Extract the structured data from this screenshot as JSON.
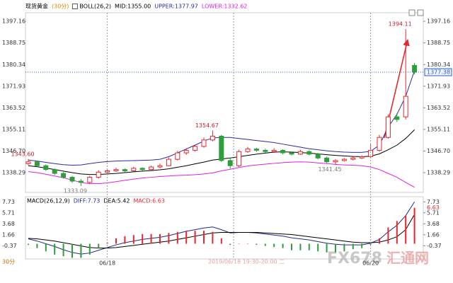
{
  "chart_data": [
    {
      "type": "candlestick",
      "symbol": "现货黄金",
      "interval": "(30分)",
      "indicator": "BOLL(26,2)",
      "up_color": "#e8262b",
      "down_color": "#2e9e3a",
      "ohlc": [
        [
          1341.8,
          1343.6,
          1341.2,
          1342.5
        ],
        [
          1342.5,
          1343.0,
          1340.6,
          1341
        ],
        [
          1341,
          1341.5,
          1339,
          1339.5
        ],
        [
          1339.5,
          1340,
          1337.4,
          1338
        ],
        [
          1338,
          1338.6,
          1336,
          1336.5
        ],
        [
          1336.5,
          1337,
          1334.3,
          1335
        ],
        [
          1335,
          1335.8,
          1333.09,
          1334.5
        ],
        [
          1334.5,
          1337,
          1334,
          1336.5
        ],
        [
          1336.5,
          1339.2,
          1336,
          1338.5
        ],
        [
          1338.5,
          1339.8,
          1338,
          1339
        ],
        [
          1339,
          1340.2,
          1338.6,
          1339.5
        ],
        [
          1339.5,
          1340,
          1338.5,
          1339
        ],
        [
          1339,
          1340.6,
          1338.8,
          1340
        ],
        [
          1340,
          1340.4,
          1339,
          1339.5
        ],
        [
          1339.5,
          1341,
          1339.2,
          1340.5
        ],
        [
          1340.5,
          1341.8,
          1340,
          1341
        ],
        [
          1341,
          1344.2,
          1340.8,
          1343.5
        ],
        [
          1343.5,
          1346.8,
          1343,
          1346
        ],
        [
          1346,
          1347.8,
          1345.2,
          1347
        ],
        [
          1347,
          1349.2,
          1346.5,
          1348.5
        ],
        [
          1348.5,
          1352,
          1348,
          1351
        ],
        [
          1351,
          1354.67,
          1350.5,
          1352.5
        ],
        [
          1352.5,
          1353,
          1342.5,
          1343
        ],
        [
          1343,
          1344,
          1339.8,
          1341
        ],
        [
          1341,
          1347.2,
          1340.5,
          1346.5
        ],
        [
          1346.5,
          1348.3,
          1346,
          1347.5
        ],
        [
          1347.5,
          1348,
          1346.4,
          1347
        ],
        [
          1347,
          1347.6,
          1346,
          1346.5
        ],
        [
          1346.5,
          1347.8,
          1346,
          1347
        ],
        [
          1347,
          1347.4,
          1345.4,
          1346
        ],
        [
          1346,
          1346.6,
          1345,
          1345.5
        ],
        [
          1345.5,
          1347.2,
          1345.2,
          1346.5
        ],
        [
          1346.5,
          1347,
          1345,
          1345.5
        ],
        [
          1345.5,
          1346,
          1343.5,
          1344
        ],
        [
          1344,
          1344.5,
          1342,
          1342.5
        ],
        [
          1342.5,
          1343.5,
          1341.45,
          1343
        ],
        [
          1343,
          1344,
          1342.6,
          1343.5
        ],
        [
          1343.5,
          1344.5,
          1343,
          1344
        ],
        [
          1344,
          1345,
          1343.6,
          1344.5
        ],
        [
          1344.5,
          1349.5,
          1344,
          1347
        ],
        [
          1347,
          1353,
          1346.5,
          1352
        ],
        [
          1352,
          1361,
          1351.5,
          1360
        ],
        [
          1360,
          1361.5,
          1358,
          1359
        ],
        [
          1360,
          1394.11,
          1359,
          1368
        ],
        [
          1380,
          1381,
          1376.5,
          1377.38
        ]
      ],
      "series": [
        {
          "name": "MID:1355.00",
          "color": "#000000",
          "values": [
            1341,
            1340.6,
            1340.1,
            1339.5,
            1338.9,
            1338.3,
            1337.8,
            1337.6,
            1337.6,
            1337.8,
            1338,
            1338.3,
            1338.6,
            1338.9,
            1339.1,
            1339.4,
            1339.8,
            1340.4,
            1341,
            1341.7,
            1342.4,
            1343.2,
            1343.6,
            1344,
            1344.5,
            1345,
            1345.5,
            1345.9,
            1346.3,
            1346.4,
            1346.3,
            1346.1,
            1345.9,
            1345.6,
            1345.3,
            1345,
            1344.8,
            1344.6,
            1344.5,
            1344.7,
            1345.6,
            1347.2,
            1349,
            1351.6,
            1355
          ]
        },
        {
          "name": "UPPER:1377.97",
          "color": "#2a2aa0",
          "values": [
            1343.2,
            1342.8,
            1342.3,
            1341.8,
            1341.4,
            1341.2,
            1341.3,
            1341.8,
            1342.3,
            1342.6,
            1342.8,
            1342.9,
            1343,
            1343.1,
            1343.2,
            1343.5,
            1344.5,
            1346,
            1347.5,
            1349,
            1350.6,
            1351.8,
            1352,
            1352,
            1351.6,
            1351.2,
            1350.8,
            1350.4,
            1350,
            1349.4,
            1348.8,
            1348.2,
            1347.6,
            1347.2,
            1346.8,
            1346.5,
            1346.3,
            1346.2,
            1346.2,
            1346.6,
            1349,
            1356,
            1361,
            1368,
            1377.97
          ]
        },
        {
          "name": "LOWER:1332.62",
          "color": "#e020e0",
          "values": [
            1338.7,
            1338.3,
            1337.7,
            1337,
            1336.3,
            1335.4,
            1334.5,
            1334,
            1334,
            1334.3,
            1334.8,
            1335.3,
            1335.8,
            1336.2,
            1336.5,
            1336.8,
            1337,
            1337.2,
            1337.3,
            1337.5,
            1337.8,
            1338.2,
            1339,
            1339.6,
            1340.3,
            1340.9,
            1341.3,
            1341.6,
            1341.9,
            1342.2,
            1342.4,
            1342.5,
            1342.4,
            1342.1,
            1341.8,
            1341.5,
            1341.3,
            1341.2,
            1341,
            1340.5,
            1339.5,
            1338,
            1336.5,
            1334.5,
            1332.62
          ]
        }
      ],
      "ylim": [
        1330.6,
        1400.5
      ],
      "yticks": [
        1397.16,
        1388.75,
        1380.34,
        1371.93,
        1363.52,
        1355.11,
        {
          "value": 1346.7,
          "label": "1346.70"
        },
        1338.29
      ],
      "annotations": [
        {
          "value": 1343.6,
          "label": "1343.60"
        },
        {
          "value": 1333.09,
          "label": "1333.09"
        },
        {
          "value": 1354.67,
          "label": "1354.67"
        },
        {
          "value": 1341.45,
          "label": "1341.45"
        },
        {
          "value": 1394.11,
          "label": "1394.11"
        }
      ],
      "current_price": {
        "value": 1377.38,
        "label": "1377.38"
      }
    },
    {
      "type": "macd",
      "indicator": "MACD(26,12,9)",
      "categories": [
        null,
        null,
        null,
        null,
        null,
        null,
        null,
        null,
        null,
        "06/18",
        null,
        null,
        null,
        null,
        null,
        null,
        null,
        null,
        null,
        null,
        null,
        null,
        null,
        null,
        null,
        null,
        null,
        null,
        null,
        null,
        null,
        null,
        null,
        null,
        null,
        null,
        null,
        null,
        null,
        "06/20",
        null,
        null,
        null,
        null,
        null
      ],
      "series": [
        {
          "name": "DIFF:7.73",
          "type": "line",
          "color": "#1f2a8c",
          "values": [
            0.9,
            0.5,
            0,
            -0.5,
            -1.1,
            -1.6,
            -1.9,
            -1.7,
            -1.2,
            -0.7,
            -0.2,
            0.2,
            0.5,
            0.8,
            1,
            1.2,
            1.5,
            1.9,
            2.3,
            2.6,
            2.9,
            3.1,
            2.6,
            2,
            2.1,
            2.1,
            2,
            1.8,
            1.6,
            1.4,
            1.1,
            0.9,
            0.7,
            0.4,
            0.1,
            -0.1,
            -0.2,
            -0.2,
            -0.2,
            0.1,
            0.8,
            2.2,
            3.4,
            5.2,
            7.73
          ]
        },
        {
          "name": "DEA:5.42",
          "type": "line",
          "color": "#000000",
          "values": [
            1.0,
            0.9,
            0.7,
            0.5,
            0.2,
            -0.1,
            -0.4,
            -0.7,
            -0.8,
            -0.8,
            -0.7,
            -0.5,
            -0.3,
            -0.1,
            0.1,
            0.3,
            0.5,
            0.8,
            1.1,
            1.4,
            1.7,
            2,
            2.1,
            2.1,
            2.1,
            2.1,
            2.1,
            2,
            1.9,
            1.8,
            1.7,
            1.5,
            1.3,
            1.1,
            0.9,
            0.7,
            0.5,
            0.3,
            0.2,
            0.2,
            0.3,
            0.7,
            1.3,
            2.6,
            5.42
          ]
        },
        {
          "name": "MACD:6.63",
          "type": "bar",
          "color": "#e8262b",
          "negative_color": "#2e9e3a",
          "values": [
            -0.2,
            -0.8,
            -1.4,
            -2,
            -2.3,
            -2.6,
            -2.6,
            -2,
            -0.8,
            0.2,
            1,
            1.4,
            1.6,
            1.8,
            1.8,
            1.8,
            2,
            2.2,
            2.4,
            2.4,
            2.4,
            2.2,
            1,
            -0.2,
            0,
            0,
            -0.2,
            -0.4,
            -0.6,
            -0.8,
            -1.2,
            -1.2,
            -1.2,
            -1.4,
            -1.6,
            -1.6,
            -1.4,
            -1,
            -0.8,
            -0.2,
            1,
            3,
            4.2,
            5.2,
            6.63
          ]
        }
      ],
      "ylim": [
        -2.8,
        8.68
      ],
      "yticks": [
        7.73,
        5.71,
        3.68,
        1.66,
        -0.37
      ]
    }
  ],
  "crosshair_label": "2019/06/18 19:30-20:00 二",
  "interval_tab": "30分",
  "watermark": {
    "brand": "FX678",
    "name": "汇通网"
  }
}
